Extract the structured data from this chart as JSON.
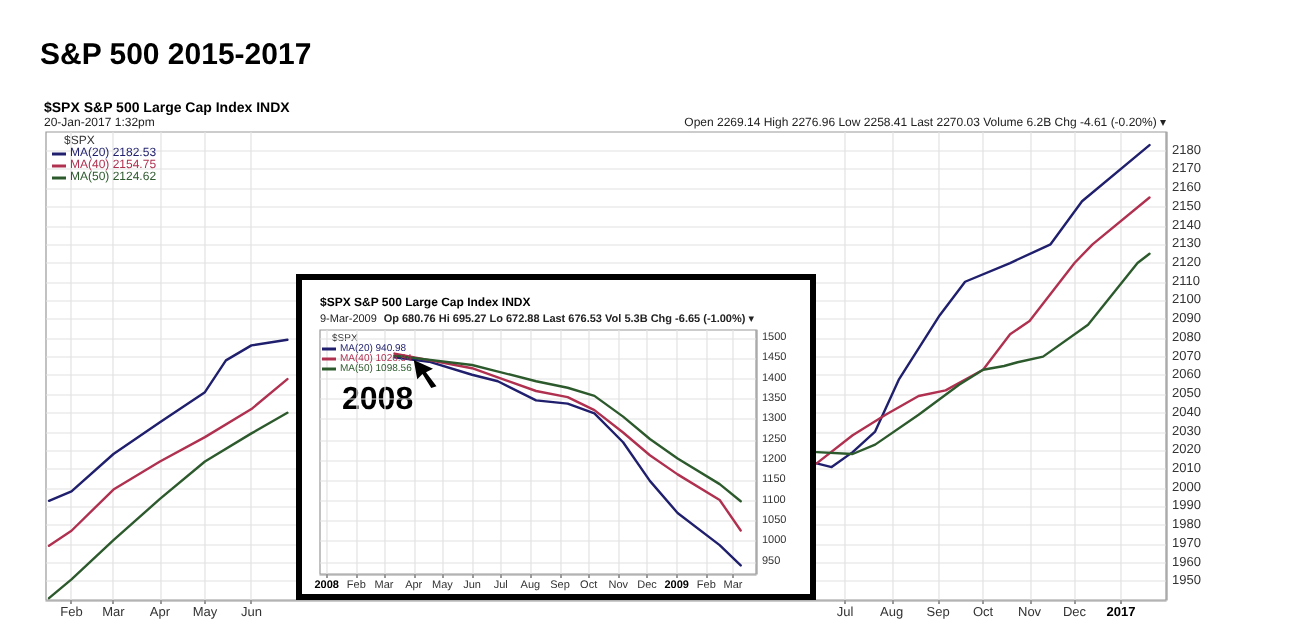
{
  "chart_data": [
    {
      "type": "line",
      "title": "S&P 500 2015-2017",
      "subtitle": "$SPX S&P 500 Large Cap Index INDX",
      "annotations": [
        "20-Jan-2017 1:32pm",
        "Open 2269.14 High 2276.96 Low 2258.41 Last 2270.03 Volume 6.2B Chg -4.61 (-0.20%) ▾"
      ],
      "legend_title": "$SPX",
      "legend": "top left",
      "grid": true,
      "xlim": [
        "2015-01-15",
        "2017-01-31"
      ],
      "xticks": [
        {
          "value": "2015-02-01",
          "label": "Feb"
        },
        {
          "value": "2015-03-01",
          "label": "Mar"
        },
        {
          "value": "2015-04-01",
          "label": "Apr"
        },
        {
          "value": "2015-05-01",
          "label": "May"
        },
        {
          "value": "2015-06-01",
          "label": "Jun"
        },
        {
          "value": "2016-07-01",
          "label": "Jul"
        },
        {
          "value": "2016-08-01",
          "label": "Aug"
        },
        {
          "value": "2016-09-01",
          "label": "Sep"
        },
        {
          "value": "2016-10-01",
          "label": "Oct"
        },
        {
          "value": "2016-11-01",
          "label": "Nov"
        },
        {
          "value": "2016-12-01",
          "label": "Dec"
        },
        {
          "value": "2017-01-01",
          "label": "2017"
        }
      ],
      "ylim": [
        1940,
        2190
      ],
      "yticks": [
        1950,
        1960,
        1970,
        1980,
        1990,
        2000,
        2010,
        2020,
        2030,
        2040,
        2050,
        2060,
        2070,
        2080,
        2090,
        2100,
        2110,
        2120,
        2130,
        2140,
        2150,
        2160,
        2170,
        2180
      ],
      "series": [
        {
          "name": "MA(20) 2182.53",
          "color": "#1f1f6e",
          "x": [
            "2015-01-17",
            "2015-02-01",
            "2015-03-01",
            "2015-04-01",
            "2015-05-01",
            "2015-05-15",
            "2015-06-01",
            "2015-06-25",
            "2016-01-01",
            "2016-06-12",
            "2016-06-22",
            "2016-07-06",
            "2016-07-21",
            "2016-08-06",
            "2016-09-02",
            "2016-09-19",
            "2016-10-19",
            "2016-11-15",
            "2016-12-06",
            "2017-01-20"
          ],
          "values": [
            1993,
            1998,
            2018,
            2035,
            2051,
            2068,
            2076,
            2079,
            null,
            2013,
            2011,
            2019,
            2030,
            2058,
            2092,
            2110,
            2120,
            2130,
            2153,
            2183
          ]
        },
        {
          "name": "MA(40) 2154.75",
          "color": "#b03050",
          "x": [
            "2015-01-17",
            "2015-02-01",
            "2015-03-01",
            "2015-04-01",
            "2015-05-01",
            "2015-06-01",
            "2015-06-25",
            "2016-01-01",
            "2016-06-12",
            "2016-07-06",
            "2016-07-28",
            "2016-08-19",
            "2016-09-06",
            "2016-10-01",
            "2016-10-19",
            "2016-11-01",
            "2016-12-01",
            "2016-12-13",
            "2017-01-20"
          ],
          "values": [
            1969,
            1977,
            1999,
            2014,
            2027,
            2042,
            2058,
            null,
            2013,
            2028,
            2039,
            2049,
            2052,
            2063,
            2082,
            2089,
            2120,
            2130,
            2155
          ]
        },
        {
          "name": "MA(50) 2124.62",
          "color": "#2d5a2d",
          "x": [
            "2015-01-17",
            "2015-02-01",
            "2015-03-01",
            "2015-04-01",
            "2015-05-01",
            "2015-06-01",
            "2015-06-25",
            "2016-01-01",
            "2016-06-12",
            "2016-07-06",
            "2016-07-21",
            "2016-08-19",
            "2016-09-15",
            "2016-10-01",
            "2016-10-15",
            "2016-10-24",
            "2016-11-10",
            "2016-12-10",
            "2017-01-12",
            "2017-01-20"
          ],
          "values": [
            1941,
            1951,
            1972,
            1994,
            2014,
            2029,
            2040,
            null,
            2019,
            2018,
            2023,
            2039,
            2055,
            2063,
            2065,
            2067,
            2070,
            2087,
            2120,
            2125
          ]
        }
      ]
    },
    {
      "type": "line",
      "title": "$SPX S&P 500 Large Cap Index INDX",
      "annotations": [
        "9-Mar-2009",
        "Op 680.76 Hi 695.27 Lo 672.88 Last 676.53 Vol 5.3B Chg -6.65 (-1.00%) ▾",
        "2008"
      ],
      "legend_title": "$SPX",
      "legend": "top left",
      "grid": true,
      "xlim": [
        "2007-12-25",
        "2009-03-25"
      ],
      "xticks": [
        {
          "value": "2008-01-01",
          "label": "2008"
        },
        {
          "value": "2008-02-01",
          "label": "Feb"
        },
        {
          "value": "2008-03-01",
          "label": "Mar"
        },
        {
          "value": "2008-04-01",
          "label": "Apr"
        },
        {
          "value": "2008-05-01",
          "label": "May"
        },
        {
          "value": "2008-06-01",
          "label": "Jun"
        },
        {
          "value": "2008-07-01",
          "label": "Jul"
        },
        {
          "value": "2008-08-01",
          "label": "Aug"
        },
        {
          "value": "2008-09-01",
          "label": "Sep"
        },
        {
          "value": "2008-10-01",
          "label": "Oct"
        },
        {
          "value": "2008-11-01",
          "label": "Nov"
        },
        {
          "value": "2008-12-01",
          "label": "Dec"
        },
        {
          "value": "2009-01-01",
          "label": "2009"
        },
        {
          "value": "2009-02-01",
          "label": "Feb"
        },
        {
          "value": "2009-03-01",
          "label": "Mar"
        }
      ],
      "ylim": [
        920,
        1520
      ],
      "yticks": [
        950,
        1000,
        1050,
        1100,
        1150,
        1200,
        1250,
        1300,
        1350,
        1400,
        1450,
        1500
      ],
      "series": [
        {
          "name": "MA(20) 940.98",
          "color": "#1f1f6e",
          "x": [
            "2008-03-12",
            "2008-04-17",
            "2008-06-01",
            "2008-06-28",
            "2008-08-07",
            "2008-09-09",
            "2008-10-07",
            "2008-11-06",
            "2008-12-04",
            "2009-01-02",
            "2009-02-15",
            "2009-03-09"
          ],
          "values": [
            1453,
            1442,
            1410,
            1394,
            1347,
            1339,
            1315,
            1244,
            1149,
            1070,
            991,
            941
          ]
        },
        {
          "name": "MA(40) 1026.84",
          "color": "#b03050",
          "x": [
            "2008-03-12",
            "2008-06-01",
            "2008-08-07",
            "2008-09-09",
            "2008-10-07",
            "2008-11-06",
            "2008-12-04",
            "2009-01-02",
            "2009-02-15",
            "2009-03-09"
          ],
          "values": [
            1462,
            1426,
            1370,
            1355,
            1323,
            1268,
            1212,
            1165,
            1102,
            1027
          ]
        },
        {
          "name": "MA(50) 1098.56",
          "color": "#2d5a2d",
          "x": [
            "2008-03-12",
            "2008-06-01",
            "2008-08-07",
            "2008-09-09",
            "2008-10-07",
            "2008-11-06",
            "2008-12-04",
            "2009-01-02",
            "2009-02-15",
            "2009-03-09"
          ],
          "values": [
            1457,
            1434,
            1394,
            1378,
            1358,
            1307,
            1252,
            1204,
            1141,
            1099
          ]
        }
      ]
    }
  ]
}
